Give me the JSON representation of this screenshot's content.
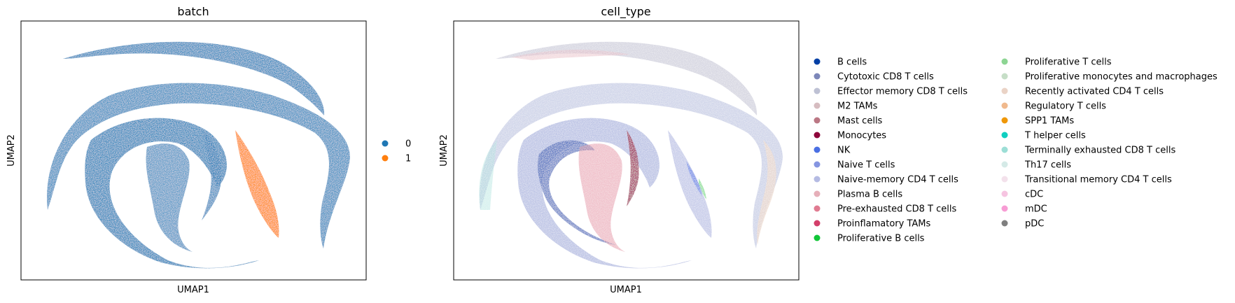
{
  "chart_data": [
    {
      "type": "scatter",
      "title": "batch",
      "xlabel": "UMAP1",
      "ylabel": "UMAP2",
      "grid": false,
      "ticks": "none",
      "legend_position": "right",
      "legend": [
        {
          "label": "0",
          "color": "#1f77b4"
        },
        {
          "label": "1",
          "color": "#ff7f0e"
        }
      ]
    },
    {
      "type": "scatter",
      "title": "cell_type",
      "xlabel": "UMAP1",
      "ylabel": "UMAP2",
      "grid": false,
      "ticks": "none",
      "legend_position": "right",
      "legend": [
        {
          "label": "B cells",
          "color": "#023fa5"
        },
        {
          "label": "Cytotoxic CD8 T cells",
          "color": "#7d87b9"
        },
        {
          "label": "Effector memory CD8 T cells",
          "color": "#bec1d4"
        },
        {
          "label": "M2 TAMs",
          "color": "#d6bcc0"
        },
        {
          "label": "Mast cells",
          "color": "#bb7784"
        },
        {
          "label": "Monocytes",
          "color": "#8e063b"
        },
        {
          "label": "NK",
          "color": "#4a6fe3"
        },
        {
          "label": "Naive T cells",
          "color": "#8595e1"
        },
        {
          "label": "Naive-memory CD4 T cells",
          "color": "#b5bbe3"
        },
        {
          "label": "Plasma B cells",
          "color": "#e6afb9"
        },
        {
          "label": "Pre-exhausted CD8 T cells",
          "color": "#e07b91"
        },
        {
          "label": "Proinflamatory TAMs",
          "color": "#d33f6a"
        },
        {
          "label": "Proliferative B cells",
          "color": "#11c638"
        },
        {
          "label": "Proliferative T cells",
          "color": "#8dd593"
        },
        {
          "label": "Proliferative monocytes and macrophages",
          "color": "#c6dec7"
        },
        {
          "label": "Recently activated CD4 T cells",
          "color": "#ead3c6"
        },
        {
          "label": "Regulatory T cells",
          "color": "#f0b98d"
        },
        {
          "label": "SPP1 TAMs",
          "color": "#ef9708"
        },
        {
          "label": "T helper cells",
          "color": "#0fcfc0"
        },
        {
          "label": "Terminally exhausted CD8 T cells",
          "color": "#9cded6"
        },
        {
          "label": "Th17 cells",
          "color": "#d5eae7"
        },
        {
          "label": "Transitional memory CD4 T cells",
          "color": "#f3e1eb"
        },
        {
          "label": "cDC",
          "color": "#f6c4e1"
        },
        {
          "label": "mDC",
          "color": "#f79cd4"
        },
        {
          "label": "pDC",
          "color": "#7f7f7f"
        }
      ]
    }
  ]
}
